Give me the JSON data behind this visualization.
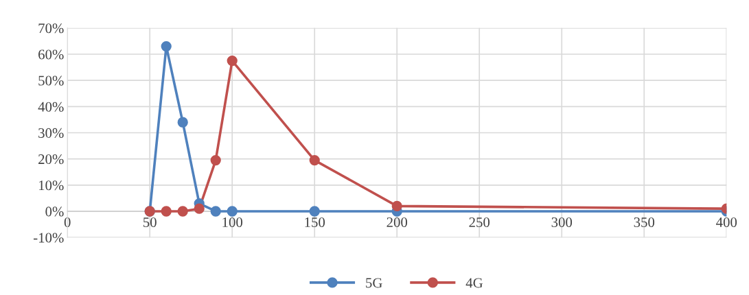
{
  "chart_data": {
    "type": "line",
    "x": [
      50,
      60,
      70,
      80,
      90,
      100,
      150,
      200,
      400
    ],
    "series": [
      {
        "name": "5G",
        "color": "#4f81bd",
        "values": [
          0,
          63,
          34,
          3,
          0,
          0,
          0,
          0,
          0
        ]
      },
      {
        "name": "4G",
        "color": "#c0504d",
        "values": [
          0,
          0,
          0,
          1,
          19.5,
          57.5,
          19.5,
          2,
          1
        ]
      }
    ],
    "xlim": [
      0,
      400
    ],
    "xticks": [
      0,
      50,
      100,
      150,
      200,
      250,
      300,
      350,
      400
    ],
    "ylim": [
      -10,
      70
    ],
    "yticks": [
      {
        "value": -10,
        "label": "-10%"
      },
      {
        "value": 0,
        "label": "0%"
      },
      {
        "value": 10,
        "label": "10%"
      },
      {
        "value": 20,
        "label": "20%"
      },
      {
        "value": 30,
        "label": "30%"
      },
      {
        "value": 40,
        "label": "40%"
      },
      {
        "value": 50,
        "label": "50%"
      },
      {
        "value": 60,
        "label": "60%"
      },
      {
        "value": 70,
        "label": "70%"
      }
    ],
    "grid": true,
    "legend": "bottom",
    "marker": "circle",
    "line_style": "solid"
  }
}
